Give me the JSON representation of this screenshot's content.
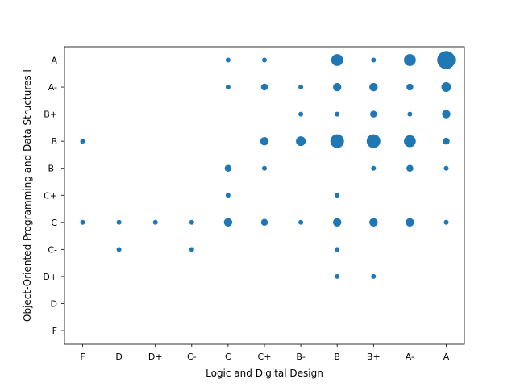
{
  "chart_data": {
    "type": "scatter",
    "title": "",
    "xlabel": "Logic and Digital Design",
    "ylabel": "Object-Oriented Programming and Data Structures I",
    "x_categories": [
      "F",
      "D",
      "D+",
      "C-",
      "C",
      "C+",
      "B-",
      "B",
      "B+",
      "A-",
      "A"
    ],
    "y_categories": [
      "F",
      "D",
      "D+",
      "C-",
      "C",
      "C+",
      "B-",
      "B",
      "B+",
      "A-",
      "A"
    ],
    "marker_color": "#1f77b4",
    "size_encoding": "relative count (1 = smallest marker)",
    "points": [
      {
        "x": "C",
        "y": "A",
        "size": 1
      },
      {
        "x": "C+",
        "y": "A",
        "size": 1
      },
      {
        "x": "B",
        "y": "A",
        "size": 6
      },
      {
        "x": "B+",
        "y": "A",
        "size": 1
      },
      {
        "x": "A-",
        "y": "A",
        "size": 6
      },
      {
        "x": "A",
        "y": "A",
        "size": 14
      },
      {
        "x": "C",
        "y": "A-",
        "size": 1
      },
      {
        "x": "C+",
        "y": "A-",
        "size": 2
      },
      {
        "x": "B-",
        "y": "A-",
        "size": 1
      },
      {
        "x": "B",
        "y": "A-",
        "size": 3
      },
      {
        "x": "B+",
        "y": "A-",
        "size": 3
      },
      {
        "x": "A-",
        "y": "A-",
        "size": 2
      },
      {
        "x": "A",
        "y": "A-",
        "size": 4
      },
      {
        "x": "B-",
        "y": "B+",
        "size": 1
      },
      {
        "x": "B",
        "y": "B+",
        "size": 1
      },
      {
        "x": "B+",
        "y": "B+",
        "size": 2
      },
      {
        "x": "A-",
        "y": "B+",
        "size": 1
      },
      {
        "x": "A",
        "y": "B+",
        "size": 3
      },
      {
        "x": "F",
        "y": "B",
        "size": 1
      },
      {
        "x": "C+",
        "y": "B",
        "size": 3
      },
      {
        "x": "B-",
        "y": "B",
        "size": 4
      },
      {
        "x": "B",
        "y": "B",
        "size": 8
      },
      {
        "x": "B+",
        "y": "B",
        "size": 8
      },
      {
        "x": "A-",
        "y": "B",
        "size": 6
      },
      {
        "x": "A",
        "y": "B",
        "size": 2
      },
      {
        "x": "C",
        "y": "B-",
        "size": 2
      },
      {
        "x": "C+",
        "y": "B-",
        "size": 1
      },
      {
        "x": "B+",
        "y": "B-",
        "size": 1
      },
      {
        "x": "A-",
        "y": "B-",
        "size": 2
      },
      {
        "x": "A",
        "y": "B-",
        "size": 1
      },
      {
        "x": "C",
        "y": "C+",
        "size": 1
      },
      {
        "x": "B",
        "y": "C+",
        "size": 1
      },
      {
        "x": "F",
        "y": "C",
        "size": 1
      },
      {
        "x": "D",
        "y": "C",
        "size": 1
      },
      {
        "x": "D+",
        "y": "C",
        "size": 1
      },
      {
        "x": "C-",
        "y": "C",
        "size": 1
      },
      {
        "x": "C",
        "y": "C",
        "size": 3
      },
      {
        "x": "C+",
        "y": "C",
        "size": 2
      },
      {
        "x": "B-",
        "y": "C",
        "size": 1
      },
      {
        "x": "B",
        "y": "C",
        "size": 3
      },
      {
        "x": "B+",
        "y": "C",
        "size": 3
      },
      {
        "x": "A-",
        "y": "C",
        "size": 3
      },
      {
        "x": "A",
        "y": "C",
        "size": 1
      },
      {
        "x": "D",
        "y": "C-",
        "size": 1
      },
      {
        "x": "C-",
        "y": "C-",
        "size": 1
      },
      {
        "x": "B",
        "y": "C-",
        "size": 1
      },
      {
        "x": "B",
        "y": "D+",
        "size": 1
      },
      {
        "x": "B+",
        "y": "D+",
        "size": 1
      }
    ]
  }
}
